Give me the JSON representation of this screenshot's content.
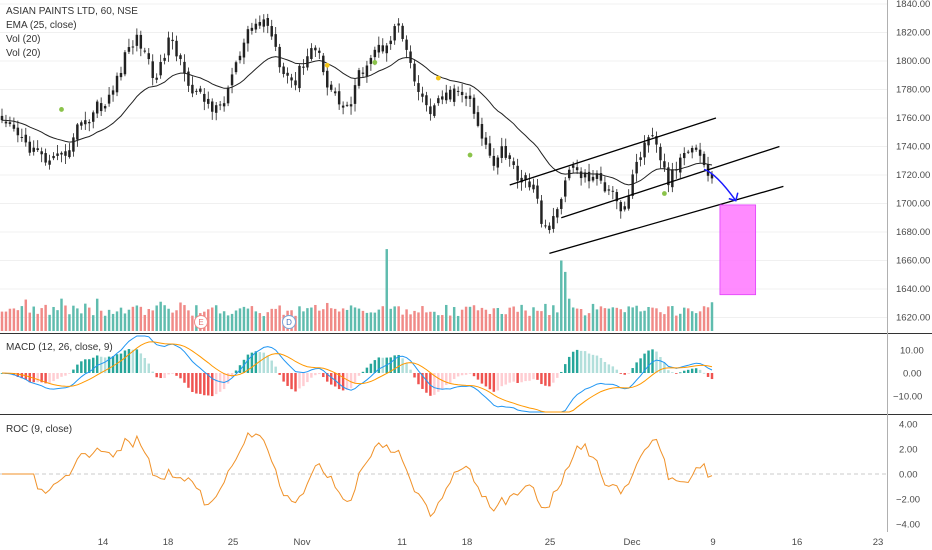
{
  "colors": {
    "up": "#26a69a",
    "down": "#ef5350",
    "vol_up": "#5fbcae",
    "vol_down": "#f08a87",
    "ema": "#222222",
    "macd_line": "#2196f3",
    "signal_line": "#ff9800",
    "hist_pos": "#26a69a",
    "hist_pos_weak": "#b2dfdb",
    "hist_neg": "#ef5350",
    "hist_neg_weak": "#ffcdd2",
    "roc": "#f0922a",
    "channel": "#000000",
    "arrow": "#1a1aff",
    "target_box": "#ff77ff",
    "dot_yellow": "#f5c518",
    "dot_green": "#8bc34a",
    "divider": "#333333",
    "grid": "#f0f0f0"
  },
  "main_panel": {
    "symbol_legend": "ASIAN PAINTS LTD, 60, NSE",
    "legend_lines": [
      "EMA (25, close)",
      "Vol (20)",
      "Vol (20)"
    ],
    "y_ticks": [
      "1840.00",
      "1820.00",
      "1800.00",
      "1780.00",
      "1760.00",
      "1740.00",
      "1720.00",
      "1700.00",
      "1680.00",
      "1660.00",
      "1640.00",
      "1620.00"
    ],
    "event_badges": [
      "E",
      "E",
      "D"
    ]
  },
  "macd_panel": {
    "legend": "MACD (12, 26, close, 9)",
    "y_ticks": [
      "10.00",
      "0.00",
      "−10.00"
    ]
  },
  "roc_panel": {
    "legend": "ROC (9, close)",
    "y_ticks": [
      "4.00",
      "2.00",
      "0.00",
      "−2.00",
      "−4.00"
    ]
  },
  "x_ticks": [
    "14",
    "18",
    "25",
    "Nov",
    "11",
    "18",
    "25",
    "Dec",
    "9",
    "16",
    "23"
  ],
  "chart_data": [
    {
      "type": "candlestick",
      "title": "ASIAN PAINTS LTD, 60, NSE",
      "ylim": [
        1610,
        1845
      ],
      "x_ticks": [
        "14",
        "18",
        "25",
        "Nov",
        "11",
        "18",
        "25",
        "Dec",
        "9",
        "16",
        "23"
      ],
      "price_anchors": [
        [
          0,
          1755
        ],
        [
          3,
          1750
        ],
        [
          6,
          1742
        ],
        [
          9,
          1735
        ],
        [
          12,
          1728
        ],
        [
          15,
          1732
        ],
        [
          18,
          1745
        ],
        [
          20,
          1760
        ],
        [
          22,
          1758
        ],
        [
          24,
          1770
        ],
        [
          26,
          1768
        ],
        [
          28,
          1780
        ],
        [
          30,
          1795
        ],
        [
          32,
          1810
        ],
        [
          34,
          1815
        ],
        [
          36,
          1808
        ],
        [
          38,
          1790
        ],
        [
          40,
          1795
        ],
        [
          42,
          1815
        ],
        [
          44,
          1805
        ],
        [
          46,
          1795
        ],
        [
          48,
          1778
        ],
        [
          50,
          1775
        ],
        [
          52,
          1770
        ],
        [
          54,
          1765
        ],
        [
          56,
          1772
        ],
        [
          58,
          1790
        ],
        [
          60,
          1803
        ],
        [
          62,
          1818
        ],
        [
          64,
          1825
        ],
        [
          66,
          1828
        ],
        [
          68,
          1820
        ],
        [
          70,
          1800
        ],
        [
          72,
          1790
        ],
        [
          74,
          1785
        ],
        [
          76,
          1800
        ],
        [
          78,
          1810
        ],
        [
          80,
          1805
        ],
        [
          82,
          1785
        ],
        [
          84,
          1775
        ],
        [
          86,
          1768
        ],
        [
          88,
          1770
        ],
        [
          90,
          1790
        ],
        [
          92,
          1800
        ],
        [
          94,
          1808
        ],
        [
          96,
          1810
        ],
        [
          98,
          1818
        ],
        [
          100,
          1825
        ],
        [
          102,
          1805
        ],
        [
          104,
          1785
        ],
        [
          106,
          1772
        ],
        [
          108,
          1765
        ],
        [
          110,
          1770
        ],
        [
          112,
          1775
        ],
        [
          114,
          1778
        ],
        [
          116,
          1776
        ],
        [
          118,
          1773
        ],
        [
          120,
          1752
        ],
        [
          122,
          1740
        ],
        [
          124,
          1730
        ],
        [
          126,
          1740
        ],
        [
          128,
          1730
        ],
        [
          130,
          1720
        ],
        [
          132,
          1718
        ],
        [
          134,
          1710
        ],
        [
          136,
          1690
        ],
        [
          138,
          1680
        ],
        [
          140,
          1695
        ],
        [
          142,
          1718
        ],
        [
          144,
          1725
        ],
        [
          146,
          1720
        ],
        [
          148,
          1718
        ],
        [
          150,
          1718
        ],
        [
          152,
          1712
        ],
        [
          154,
          1712
        ],
        [
          156,
          1695
        ],
        [
          158,
          1705
        ],
        [
          160,
          1730
        ],
        [
          162,
          1740
        ],
        [
          164,
          1745
        ],
        [
          166,
          1732
        ],
        [
          168,
          1715
        ],
        [
          170,
          1725
        ],
        [
          172,
          1738
        ],
        [
          174,
          1742
        ],
        [
          176,
          1735
        ],
        [
          178,
          1720
        ]
      ],
      "candle_count": 180,
      "series": [
        {
          "name": "EMA (25, close)",
          "values": "computed from closes"
        }
      ],
      "volume": {
        "name": "Vol (20)",
        "spikes": [
          [
            97,
            1668
          ],
          [
            141,
            1660
          ],
          [
            142,
            1652
          ]
        ]
      },
      "annotations": {
        "channel_lines": [
          {
            "x": [
              128,
              180
            ],
            "y": [
              1713,
              1760
            ]
          },
          {
            "x": [
              138,
              197
            ],
            "y": [
              1665,
              1712
            ]
          },
          {
            "x": [
              141,
              196
            ],
            "y": [
              1690,
              1740
            ]
          }
        ],
        "arrow": {
          "x": [
            177,
            185
          ],
          "y": [
            1724,
            1702
          ]
        },
        "target_box": {
          "x": [
            181,
            190
          ],
          "y": [
            1636,
            1699
          ]
        },
        "dots_yellow": [
          [
            82,
            1797
          ],
          [
            110,
            1788
          ]
        ],
        "dots_green": [
          [
            15,
            1766
          ],
          [
            94,
            1799
          ],
          [
            118,
            1734
          ],
          [
            167,
            1707
          ]
        ]
      }
    },
    {
      "type": "line",
      "title": "MACD (12, 26, close, 9)",
      "ylim": [
        -15,
        14
      ],
      "series": [
        {
          "name": "MACD",
          "values": "computed from closes"
        },
        {
          "name": "Signal",
          "values": "computed from MACD"
        },
        {
          "name": "Histogram",
          "values": "MACD minus Signal"
        }
      ]
    },
    {
      "type": "line",
      "title": "ROC (9, close)",
      "ylim": [
        -4.2,
        4.2
      ],
      "series": [
        {
          "name": "ROC",
          "values": "computed from closes"
        }
      ]
    }
  ]
}
